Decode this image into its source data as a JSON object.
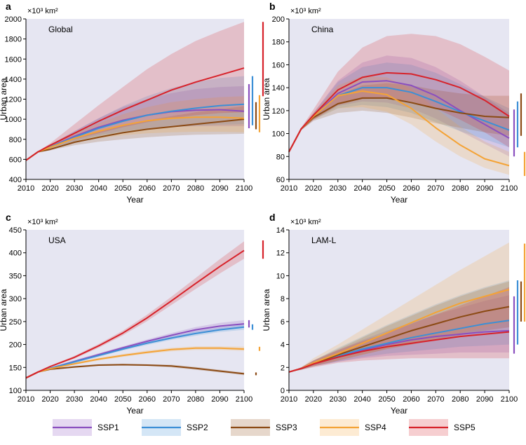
{
  "colors": {
    "SSP1": "#8a4fbf",
    "SSP2": "#3c8fd6",
    "SSP3": "#8b4a14",
    "SSP4": "#f4a336",
    "SSP5": "#d7222a",
    "plot_background": "#e6e6f2"
  },
  "legend": [
    {
      "name": "SSP1"
    },
    {
      "name": "SSP2"
    },
    {
      "name": "SSP3"
    },
    {
      "name": "SSP4"
    },
    {
      "name": "SSP5"
    }
  ],
  "chart_data": [
    {
      "panel_letter": "a",
      "type": "line",
      "title": "Global",
      "unit_label": "×10³ km²",
      "ylabel": "Urban area",
      "xlabel": "Year",
      "grid": false,
      "ylim": [
        400,
        2000
      ],
      "yticks": [
        400,
        600,
        800,
        1000,
        1200,
        1400,
        1600,
        1800,
        2000
      ],
      "xlim": [
        2010,
        2100
      ],
      "xticks": [
        2010,
        2020,
        2030,
        2040,
        2050,
        2060,
        2070,
        2080,
        2090,
        2100
      ],
      "x": [
        2010,
        2015,
        2020,
        2030,
        2040,
        2050,
        2060,
        2070,
        2080,
        2090,
        2100
      ],
      "series": [
        {
          "name": "SSP1",
          "values": [
            590,
            675,
            725,
            830,
            920,
            990,
            1040,
            1075,
            1090,
            1095,
            1080
          ],
          "lower": [
            590,
            670,
            710,
            780,
            840,
            880,
            910,
            925,
            930,
            930,
            930
          ],
          "upper": [
            590,
            680,
            745,
            880,
            1010,
            1120,
            1200,
            1260,
            1300,
            1320,
            1330
          ],
          "range_2100": [
            910,
            1350
          ]
        },
        {
          "name": "SSP2",
          "values": [
            590,
            675,
            725,
            820,
            910,
            980,
            1040,
            1080,
            1110,
            1135,
            1150
          ],
          "lower": [
            590,
            670,
            710,
            775,
            830,
            870,
            900,
            920,
            935,
            945,
            950
          ],
          "upper": [
            590,
            680,
            745,
            880,
            1010,
            1130,
            1230,
            1310,
            1370,
            1410,
            1430
          ],
          "range_2100": [
            940,
            1430
          ]
        },
        {
          "name": "SSP3",
          "values": [
            590,
            675,
            700,
            770,
            820,
            865,
            900,
            925,
            950,
            975,
            1000
          ],
          "lower": [
            590,
            670,
            690,
            740,
            775,
            800,
            820,
            835,
            845,
            850,
            855
          ],
          "upper": [
            590,
            680,
            715,
            810,
            880,
            940,
            990,
            1030,
            1070,
            1100,
            1130
          ],
          "range_2100": [
            900,
            1170
          ]
        },
        {
          "name": "SSP4",
          "values": [
            590,
            675,
            720,
            810,
            880,
            940,
            985,
            1010,
            1020,
            1020,
            1010
          ],
          "lower": [
            590,
            670,
            705,
            765,
            810,
            840,
            860,
            870,
            875,
            875,
            870
          ],
          "upper": [
            590,
            680,
            740,
            860,
            960,
            1050,
            1120,
            1170,
            1200,
            1220,
            1230
          ],
          "range_2100": [
            870,
            1240
          ]
        },
        {
          "name": "SSP5",
          "values": [
            590,
            675,
            740,
            860,
            980,
            1090,
            1190,
            1290,
            1370,
            1440,
            1510
          ],
          "lower": [
            590,
            670,
            720,
            800,
            860,
            920,
            970,
            1010,
            1040,
            1060,
            1070
          ],
          "upper": [
            590,
            680,
            760,
            950,
            1140,
            1320,
            1500,
            1650,
            1780,
            1880,
            1970
          ],
          "range_2100": [
            1230,
            1970
          ]
        }
      ]
    },
    {
      "panel_letter": "b",
      "type": "line",
      "title": "China",
      "unit_label": "×10³ km²",
      "ylabel": "Urban area",
      "xlabel": "Year",
      "grid": false,
      "ylim": [
        60,
        200
      ],
      "yticks": [
        60,
        80,
        100,
        120,
        140,
        160,
        180,
        200
      ],
      "xlim": [
        2010,
        2100
      ],
      "xticks": [
        2010,
        2020,
        2030,
        2040,
        2050,
        2060,
        2070,
        2080,
        2090,
        2100
      ],
      "x": [
        2010,
        2015,
        2020,
        2030,
        2040,
        2050,
        2060,
        2070,
        2080,
        2090,
        2100
      ],
      "series": [
        {
          "name": "SSP1",
          "values": [
            84,
            104,
            115,
            135,
            145,
            146,
            142,
            133,
            120,
            108,
            96
          ],
          "lower": [
            84,
            103,
            112,
            124,
            128,
            127,
            122,
            113,
            102,
            91,
            80
          ],
          "upper": [
            84,
            105,
            118,
            146,
            162,
            168,
            166,
            158,
            146,
            132,
            118
          ],
          "range_2100": [
            80,
            121
          ]
        },
        {
          "name": "SSP2",
          "values": [
            84,
            104,
            115,
            133,
            140,
            140,
            136,
            128,
            119,
            111,
            103
          ],
          "lower": [
            84,
            103,
            112,
            122,
            125,
            123,
            118,
            110,
            102,
            95,
            88
          ],
          "upper": [
            84,
            105,
            118,
            145,
            158,
            162,
            160,
            153,
            143,
            132,
            122
          ],
          "range_2100": [
            88,
            128
          ]
        },
        {
          "name": "SSP3",
          "values": [
            84,
            104,
            114,
            126,
            131,
            131,
            127,
            122,
            118,
            115,
            114
          ],
          "lower": [
            84,
            103,
            111,
            118,
            120,
            118,
            114,
            109,
            105,
            101,
            98
          ],
          "upper": [
            84,
            105,
            117,
            134,
            142,
            144,
            142,
            138,
            135,
            133,
            133
          ],
          "range_2100": [
            98,
            135
          ]
        },
        {
          "name": "SSP4",
          "values": [
            84,
            104,
            115,
            133,
            137,
            134,
            122,
            105,
            90,
            78,
            72
          ],
          "lower": [
            84,
            103,
            112,
            122,
            123,
            119,
            108,
            93,
            80,
            70,
            64
          ],
          "upper": [
            84,
            105,
            118,
            142,
            150,
            149,
            139,
            122,
            106,
            93,
            84
          ],
          "range_2100": [
            63,
            84
          ]
        },
        {
          "name": "SSP5",
          "values": [
            84,
            104,
            116,
            138,
            149,
            153,
            152,
            147,
            140,
            129,
            115
          ],
          "lower": [
            84,
            103,
            112,
            125,
            130,
            131,
            128,
            122,
            112,
            101,
            88
          ],
          "upper": [
            84,
            105,
            121,
            154,
            175,
            185,
            187,
            185,
            178,
            167,
            155
          ],
          "range_2100": [
            88,
            156
          ]
        }
      ]
    },
    {
      "panel_letter": "c",
      "type": "line",
      "title": "USA",
      "unit_label": "×10³ km²",
      "ylabel": "Urban area",
      "xlabel": "Year",
      "grid": false,
      "ylim": [
        100,
        450
      ],
      "yticks": [
        100,
        150,
        200,
        250,
        300,
        350,
        400,
        450
      ],
      "xlim": [
        2010,
        2100
      ],
      "xticks": [
        2010,
        2020,
        2030,
        2040,
        2050,
        2060,
        2070,
        2080,
        2090,
        2100
      ],
      "x": [
        2010,
        2015,
        2020,
        2030,
        2040,
        2050,
        2060,
        2070,
        2080,
        2090,
        2100
      ],
      "series": [
        {
          "name": "SSP1",
          "values": [
            127,
            140,
            148,
            163,
            178,
            193,
            207,
            220,
            232,
            240,
            245
          ],
          "lower": [
            127,
            140,
            146,
            160,
            175,
            190,
            203,
            215,
            226,
            233,
            237
          ],
          "upper": [
            127,
            140,
            150,
            166,
            181,
            196,
            211,
            225,
            238,
            247,
            253
          ],
          "range_2100": [
            237,
            253
          ]
        },
        {
          "name": "SSP2",
          "values": [
            127,
            140,
            148,
            162,
            176,
            190,
            203,
            214,
            224,
            232,
            238
          ],
          "lower": [
            127,
            140,
            146,
            159,
            173,
            187,
            199,
            210,
            219,
            227,
            232
          ],
          "upper": [
            127,
            140,
            150,
            165,
            179,
            193,
            207,
            218,
            229,
            237,
            244
          ],
          "range_2100": [
            232,
            244
          ]
        },
        {
          "name": "SSP3",
          "values": [
            127,
            140,
            146,
            151,
            155,
            156,
            155,
            153,
            148,
            142,
            136
          ],
          "lower": [
            127,
            140,
            145,
            149,
            153,
            154,
            153,
            150,
            145,
            139,
            133
          ],
          "upper": [
            127,
            140,
            147,
            153,
            157,
            158,
            157,
            156,
            151,
            145,
            139
          ],
          "range_2100": [
            133,
            139
          ]
        },
        {
          "name": "SSP4",
          "values": [
            127,
            140,
            147,
            158,
            168,
            176,
            183,
            189,
            192,
            192,
            190
          ],
          "lower": [
            127,
            140,
            146,
            156,
            165,
            173,
            180,
            185,
            188,
            188,
            186
          ],
          "upper": [
            127,
            140,
            148,
            160,
            171,
            179,
            187,
            193,
            196,
            196,
            195
          ],
          "range_2100": [
            186,
            195
          ]
        },
        {
          "name": "SSP5",
          "values": [
            127,
            140,
            152,
            172,
            197,
            225,
            258,
            295,
            333,
            370,
            405
          ],
          "lower": [
            127,
            140,
            150,
            169,
            193,
            220,
            251,
            286,
            321,
            355,
            387
          ],
          "upper": [
            127,
            140,
            154,
            175,
            201,
            230,
            265,
            304,
            345,
            386,
            425
          ],
          "range_2100": [
            387,
            427
          ]
        }
      ]
    },
    {
      "panel_letter": "d",
      "type": "line",
      "title": "LAM-L",
      "unit_label": "×10³ km²",
      "ylabel": "Urban area",
      "xlabel": "Year",
      "grid": false,
      "ylim": [
        0,
        14
      ],
      "yticks": [
        0,
        2,
        4,
        6,
        8,
        10,
        12,
        14
      ],
      "xlim": [
        2010,
        2100
      ],
      "xticks": [
        2010,
        2020,
        2030,
        2040,
        2050,
        2060,
        2070,
        2080,
        2090,
        2100
      ],
      "x": [
        2010,
        2015,
        2020,
        2030,
        2040,
        2050,
        2060,
        2070,
        2080,
        2090,
        2100
      ],
      "series": [
        {
          "name": "SSP1",
          "values": [
            1.6,
            1.9,
            2.3,
            2.9,
            3.5,
            4.0,
            4.4,
            4.7,
            4.9,
            5.1,
            5.2
          ],
          "lower": [
            1.6,
            1.8,
            2.1,
            2.5,
            2.8,
            3.0,
            3.1,
            3.2,
            3.3,
            3.3,
            3.3
          ],
          "upper": [
            1.6,
            2.0,
            2.6,
            3.5,
            4.4,
            5.2,
            5.9,
            6.6,
            7.2,
            7.8,
            8.3
          ],
          "range_2100": [
            3.2,
            8.2
          ]
        },
        {
          "name": "SSP2",
          "values": [
            1.6,
            1.9,
            2.3,
            3.0,
            3.6,
            4.1,
            4.6,
            5.0,
            5.4,
            5.8,
            6.1
          ],
          "lower": [
            1.6,
            1.8,
            2.1,
            2.5,
            2.9,
            3.2,
            3.4,
            3.6,
            3.8,
            3.9,
            4.0
          ],
          "upper": [
            1.6,
            2.0,
            2.6,
            3.7,
            4.7,
            5.7,
            6.6,
            7.5,
            8.3,
            9.0,
            9.6
          ],
          "range_2100": [
            4.0,
            9.6
          ]
        },
        {
          "name": "SSP3",
          "values": [
            1.6,
            1.9,
            2.3,
            3.1,
            3.8,
            4.5,
            5.2,
            5.8,
            6.4,
            6.9,
            7.3
          ],
          "lower": [
            1.6,
            1.8,
            2.1,
            2.6,
            3.1,
            3.6,
            4.0,
            4.4,
            4.8,
            5.2,
            5.5
          ],
          "upper": [
            1.6,
            2.0,
            2.6,
            3.6,
            4.6,
            5.6,
            6.5,
            7.4,
            8.2,
            8.9,
            9.5
          ],
          "range_2100": [
            6.0,
            9.5
          ]
        },
        {
          "name": "SSP4",
          "values": [
            1.6,
            1.9,
            2.4,
            3.2,
            4.1,
            5.0,
            5.9,
            6.8,
            7.6,
            8.2,
            8.8
          ],
          "lower": [
            1.6,
            1.8,
            2.1,
            2.6,
            3.1,
            3.6,
            4.0,
            4.5,
            5.0,
            5.5,
            6.0
          ],
          "upper": [
            1.6,
            2.0,
            2.8,
            4.0,
            5.3,
            6.6,
            7.9,
            9.2,
            10.5,
            11.7,
            12.9
          ],
          "range_2100": [
            6.0,
            12.8
          ]
        },
        {
          "name": "SSP5",
          "values": [
            1.6,
            1.9,
            2.3,
            2.9,
            3.4,
            3.8,
            4.1,
            4.4,
            4.7,
            4.9,
            5.1
          ],
          "lower": [
            1.6,
            1.8,
            2.0,
            2.4,
            2.6,
            2.7,
            2.8,
            2.8,
            2.8,
            2.8,
            2.8
          ],
          "upper": [
            1.6,
            2.0,
            2.6,
            3.5,
            4.3,
            5.0,
            5.8,
            6.6,
            7.4,
            8.2,
            9.0
          ],
          "range_2100": [
            2.8,
            9.3
          ]
        }
      ]
    }
  ]
}
